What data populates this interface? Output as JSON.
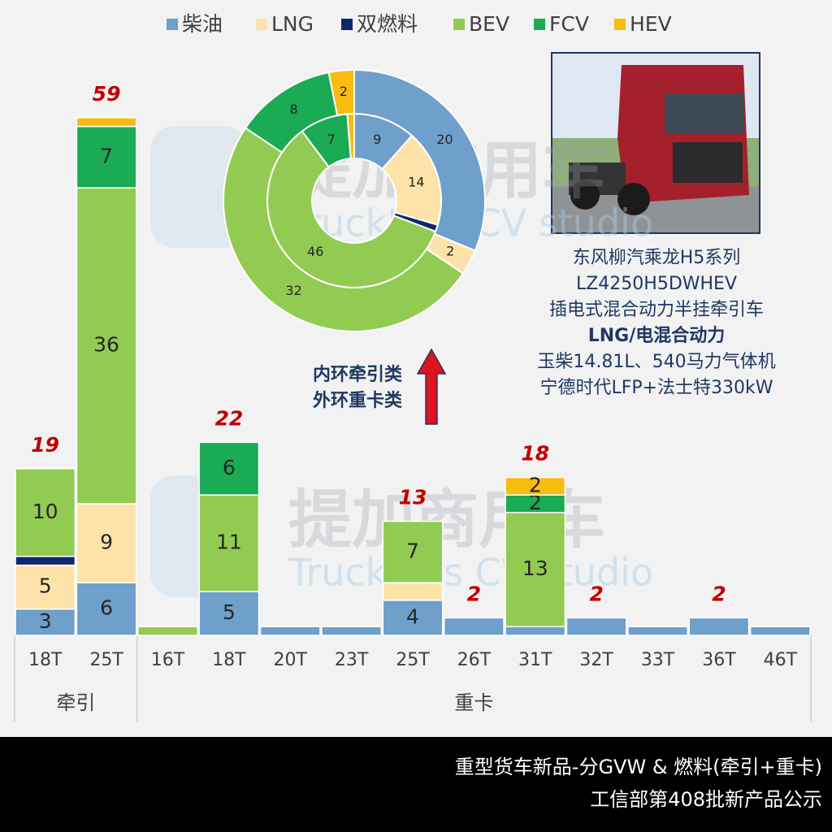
{
  "chart_data": [
    {
      "type": "bar",
      "stacked": true,
      "groups": [
        {
          "name": "牵引",
          "categories": [
            "18T",
            "25T"
          ]
        },
        {
          "name": "重卡",
          "categories": [
            "16T",
            "18T",
            "20T",
            "23T",
            "25T",
            "26T",
            "31T",
            "32T",
            "33T",
            "36T",
            "46T"
          ]
        }
      ],
      "series": [
        {
          "name": "柴油",
          "color": "#6f9fcb",
          "values": [
            3,
            6,
            0,
            5,
            1,
            1,
            4,
            2,
            1,
            2,
            1,
            2,
            1
          ]
        },
        {
          "name": "LNG",
          "color": "#fde3a9",
          "values": [
            5,
            9,
            0,
            0,
            0,
            0,
            2,
            0,
            0,
            0,
            0,
            0,
            0
          ]
        },
        {
          "name": "双燃料",
          "color": "#10286b",
          "values": [
            1,
            0,
            0,
            0,
            0,
            0,
            0,
            0,
            0,
            0,
            0,
            0,
            0
          ]
        },
        {
          "name": "BEV",
          "color": "#92cb52",
          "values": [
            10,
            36,
            1,
            11,
            0,
            0,
            7,
            0,
            13,
            0,
            0,
            0,
            0
          ]
        },
        {
          "name": "FCV",
          "color": "#1aab54",
          "values": [
            0,
            7,
            0,
            6,
            0,
            0,
            0,
            0,
            2,
            0,
            0,
            0,
            0
          ]
        },
        {
          "name": "HEV",
          "color": "#f8bb10",
          "values": [
            0,
            1,
            0,
            0,
            0,
            0,
            0,
            0,
            2,
            0,
            0,
            0,
            0
          ]
        }
      ],
      "totals": [
        19,
        59,
        null,
        22,
        null,
        null,
        13,
        2,
        18,
        2,
        null,
        2,
        null
      ],
      "ylim": [
        0,
        60
      ]
    },
    {
      "type": "donut",
      "rings": [
        {
          "values": [
            9,
            14,
            1,
            46,
            7,
            1
          ]
        },
        {
          "values": [
            20,
            2,
            0,
            32,
            8,
            2
          ]
        }
      ]
    }
  ],
  "annotation": [
    "内环牵引类",
    "外环重卡类"
  ],
  "photo_caption": [
    "东风柳汽乘龙H5系列",
    "LZ4250H5DWHEV",
    "插电式混合动力半挂牵引车",
    "LNG/电混合动力",
    "玉柴14.81L、540马力气体机",
    "宁德时代LFP+法士特330kW"
  ],
  "watermark": {
    "name": "提加商用车",
    "sub": "TruckPlus CV studio"
  },
  "footer": [
    "重型货车新品-分GVW & 燃料(牵引+重卡)",
    "工信部第408批新产品公示"
  ]
}
